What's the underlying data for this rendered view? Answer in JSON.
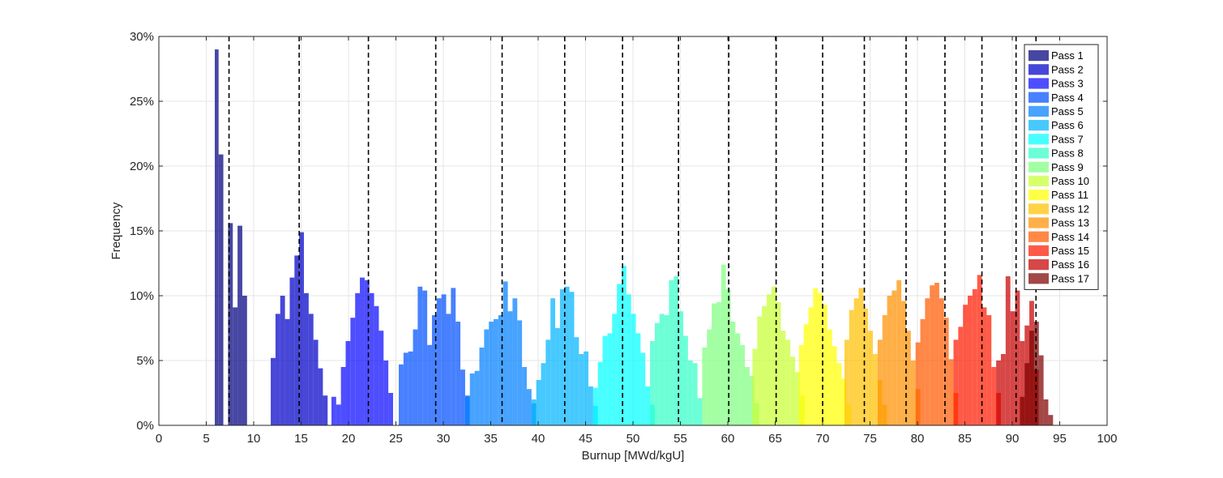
{
  "chart_data": {
    "type": "bar",
    "subtype": "histogram",
    "title": "",
    "xlabel": "Burnup [MWd/kgU]",
    "ylabel": "Frequency",
    "xlim": [
      0,
      100
    ],
    "ylim": [
      0,
      30
    ],
    "x_ticks": [
      "0",
      "5",
      "10",
      "15",
      "20",
      "25",
      "30",
      "35",
      "40",
      "45",
      "50",
      "55",
      "60",
      "65",
      "70",
      "75",
      "80",
      "85",
      "90",
      "95",
      "100"
    ],
    "y_ticks": [
      "0%",
      "5%",
      "10%",
      "15%",
      "20%",
      "25%",
      "30%"
    ],
    "grid": true,
    "legend_position": "top-right",
    "bar_opacity": 0.72,
    "dashed_lines_x": [
      7.4,
      14.8,
      22.1,
      29.2,
      36.2,
      42.8,
      48.9,
      54.8,
      60.1,
      65.1,
      70.0,
      74.4,
      78.8,
      82.9,
      86.8,
      90.4,
      92.5
    ],
    "series": [
      {
        "name": "Pass 1",
        "color": "#00007f",
        "bins": [
          [
            5.9,
            6.3,
            29.0
          ],
          [
            6.3,
            6.8,
            20.9
          ],
          [
            7.3,
            7.8,
            15.6
          ],
          [
            7.8,
            8.3,
            9.1
          ],
          [
            8.3,
            8.8,
            15.4
          ],
          [
            8.8,
            9.3,
            10.0
          ]
        ]
      },
      {
        "name": "Pass 2",
        "color": "#0000c8",
        "bins": [
          [
            11.8,
            12.3,
            5.2
          ],
          [
            12.3,
            12.8,
            8.6
          ],
          [
            12.8,
            13.3,
            10.0
          ],
          [
            13.3,
            13.8,
            8.2
          ],
          [
            13.8,
            14.3,
            11.4
          ],
          [
            14.3,
            14.8,
            13.1
          ],
          [
            14.8,
            15.3,
            14.9
          ],
          [
            15.3,
            15.8,
            10.2
          ],
          [
            15.8,
            16.3,
            8.6
          ],
          [
            16.3,
            16.8,
            6.6
          ],
          [
            16.8,
            17.3,
            4.4
          ],
          [
            17.3,
            17.8,
            2.3
          ]
        ]
      },
      {
        "name": "Pass 3",
        "color": "#0a0aff",
        "bins": [
          [
            18.2,
            18.7,
            2.2
          ],
          [
            18.7,
            19.2,
            1.6
          ],
          [
            19.2,
            19.7,
            4.5
          ],
          [
            19.7,
            20.2,
            6.5
          ],
          [
            20.2,
            20.7,
            8.3
          ],
          [
            20.7,
            21.2,
            10.2
          ],
          [
            21.2,
            21.7,
            11.4
          ],
          [
            21.7,
            22.2,
            11.2
          ],
          [
            22.2,
            22.7,
            10.2
          ],
          [
            22.7,
            23.2,
            9.2
          ],
          [
            23.2,
            23.7,
            7.3
          ],
          [
            23.7,
            24.2,
            5.0
          ],
          [
            24.2,
            24.7,
            2.5
          ]
        ]
      },
      {
        "name": "Pass 4",
        "color": "#0050ff",
        "bins": [
          [
            25.3,
            25.8,
            4.7
          ],
          [
            25.8,
            26.3,
            5.6
          ],
          [
            26.3,
            26.8,
            5.7
          ],
          [
            26.8,
            27.3,
            7.4
          ],
          [
            27.3,
            27.8,
            10.7
          ],
          [
            27.8,
            28.3,
            10.4
          ],
          [
            28.3,
            28.8,
            6.2
          ],
          [
            28.8,
            29.3,
            8.5
          ],
          [
            29.3,
            29.8,
            9.8
          ],
          [
            29.8,
            30.3,
            10.1
          ],
          [
            30.3,
            30.8,
            8.6
          ],
          [
            30.8,
            31.3,
            10.6
          ],
          [
            31.3,
            31.8,
            8.0
          ],
          [
            31.8,
            32.3,
            4.3
          ],
          [
            32.3,
            32.8,
            2.3
          ]
        ]
      },
      {
        "name": "Pass 5",
        "color": "#0080ff",
        "bins": [
          [
            32.3,
            32.8,
            2.2
          ],
          [
            32.8,
            33.3,
            4.0
          ],
          [
            33.3,
            33.8,
            4.2
          ],
          [
            33.8,
            34.3,
            6.0
          ],
          [
            34.3,
            34.8,
            7.4
          ],
          [
            34.8,
            35.3,
            8.0
          ],
          [
            35.3,
            35.8,
            8.2
          ],
          [
            35.8,
            36.3,
            8.5
          ],
          [
            36.3,
            36.8,
            11.1
          ],
          [
            36.8,
            37.3,
            8.8
          ],
          [
            37.3,
            37.8,
            9.8
          ],
          [
            37.8,
            38.3,
            8.1
          ],
          [
            38.3,
            38.8,
            4.5
          ],
          [
            38.8,
            39.3,
            2.8
          ],
          [
            39.3,
            39.8,
            1.7
          ]
        ]
      },
      {
        "name": "Pass 6",
        "color": "#00b4ff",
        "bins": [
          [
            39.3,
            39.8,
            2.0
          ],
          [
            39.8,
            40.3,
            3.5
          ],
          [
            40.3,
            40.8,
            4.8
          ],
          [
            40.8,
            41.3,
            6.6
          ],
          [
            41.3,
            41.8,
            9.8
          ],
          [
            41.8,
            42.3,
            7.5
          ],
          [
            42.3,
            42.8,
            10.5
          ],
          [
            42.8,
            43.3,
            10.7
          ],
          [
            43.3,
            43.8,
            10.3
          ],
          [
            43.8,
            44.3,
            6.8
          ],
          [
            44.3,
            44.8,
            5.5
          ],
          [
            44.8,
            45.3,
            5.7
          ],
          [
            45.3,
            45.8,
            3.0
          ],
          [
            45.8,
            46.3,
            1.5
          ]
        ]
      },
      {
        "name": "Pass 7",
        "color": "#00ffff",
        "bins": [
          [
            45.8,
            46.3,
            2.9
          ],
          [
            46.3,
            46.8,
            4.9
          ],
          [
            46.8,
            47.3,
            6.9
          ],
          [
            47.3,
            47.8,
            7.1
          ],
          [
            47.8,
            48.3,
            8.6
          ],
          [
            48.3,
            48.8,
            10.9
          ],
          [
            48.8,
            49.3,
            12.3
          ],
          [
            49.3,
            49.8,
            10.1
          ],
          [
            49.8,
            50.3,
            8.6
          ],
          [
            50.3,
            50.8,
            7.1
          ],
          [
            50.8,
            51.3,
            5.6
          ],
          [
            51.3,
            51.8,
            3.0
          ],
          [
            51.8,
            52.3,
            1.6
          ]
        ]
      },
      {
        "name": "Pass 8",
        "color": "#33ffc8",
        "bins": [
          [
            51.8,
            52.3,
            6.5
          ],
          [
            52.3,
            52.8,
            7.9
          ],
          [
            52.8,
            53.3,
            8.6
          ],
          [
            53.3,
            53.8,
            8.5
          ],
          [
            53.8,
            54.3,
            11.2
          ],
          [
            54.3,
            54.8,
            11.5
          ],
          [
            54.8,
            55.3,
            8.8
          ],
          [
            55.3,
            55.8,
            6.9
          ],
          [
            55.8,
            56.3,
            5.0
          ],
          [
            56.3,
            56.8,
            4.8
          ],
          [
            56.8,
            57.3,
            2.1
          ]
        ]
      },
      {
        "name": "Pass 9",
        "color": "#80ff80",
        "bins": [
          [
            57.3,
            57.8,
            6.0
          ],
          [
            57.8,
            58.3,
            7.4
          ],
          [
            58.3,
            58.8,
            9.4
          ],
          [
            58.8,
            59.3,
            9.5
          ],
          [
            59.3,
            59.8,
            12.4
          ],
          [
            59.8,
            60.3,
            10.5
          ],
          [
            60.3,
            60.8,
            8.0
          ],
          [
            60.8,
            61.3,
            7.1
          ],
          [
            61.3,
            61.8,
            6.2
          ],
          [
            61.8,
            62.3,
            4.5
          ],
          [
            62.3,
            62.8,
            3.8
          ],
          [
            62.8,
            63.3,
            1.7
          ]
        ]
      },
      {
        "name": "Pass 10",
        "color": "#c8ff33",
        "bins": [
          [
            62.6,
            63.1,
            5.9
          ],
          [
            63.1,
            63.6,
            8.4
          ],
          [
            63.6,
            64.1,
            9.2
          ],
          [
            64.1,
            64.6,
            10.1
          ],
          [
            64.6,
            65.1,
            10.7
          ],
          [
            65.1,
            65.6,
            9.5
          ],
          [
            65.6,
            66.1,
            7.3
          ],
          [
            66.1,
            66.6,
            6.6
          ],
          [
            66.6,
            67.1,
            5.3
          ],
          [
            67.1,
            67.6,
            4.1
          ],
          [
            67.6,
            68.1,
            2.3
          ]
        ]
      },
      {
        "name": "Pass 11",
        "color": "#ffff00",
        "bins": [
          [
            67.5,
            68.0,
            6.2
          ],
          [
            68.0,
            68.5,
            7.8
          ],
          [
            68.5,
            69.0,
            9.1
          ],
          [
            69.0,
            69.5,
            10.6
          ],
          [
            69.5,
            70.0,
            10.2
          ],
          [
            70.0,
            70.5,
            9.3
          ],
          [
            70.5,
            71.0,
            7.4
          ],
          [
            71.0,
            71.5,
            6.1
          ],
          [
            71.5,
            72.0,
            4.8
          ],
          [
            72.0,
            72.5,
            3.6
          ],
          [
            72.5,
            73.0,
            1.6
          ]
        ]
      },
      {
        "name": "Pass 12",
        "color": "#ffc000",
        "bins": [
          [
            72.3,
            72.8,
            6.6
          ],
          [
            72.8,
            73.3,
            8.9
          ],
          [
            73.3,
            73.8,
            9.8
          ],
          [
            73.8,
            74.3,
            10.6
          ],
          [
            74.3,
            74.8,
            9.0
          ],
          [
            74.8,
            75.3,
            7.3
          ],
          [
            75.3,
            75.8,
            5.5
          ],
          [
            75.8,
            76.3,
            3.5
          ],
          [
            76.3,
            76.8,
            1.6
          ]
        ]
      },
      {
        "name": "Pass 13",
        "color": "#ff9000",
        "bins": [
          [
            75.8,
            76.3,
            6.6
          ],
          [
            76.3,
            76.8,
            8.5
          ],
          [
            76.8,
            77.3,
            10.0
          ],
          [
            77.3,
            77.8,
            10.4
          ],
          [
            77.8,
            78.3,
            11.2
          ],
          [
            78.3,
            78.8,
            9.6
          ],
          [
            78.8,
            79.3,
            7.3
          ],
          [
            79.3,
            79.8,
            5.0
          ],
          [
            79.8,
            80.3,
            2.8
          ]
        ]
      },
      {
        "name": "Pass 14",
        "color": "#ff5a00",
        "bins": [
          [
            79.8,
            80.3,
            6.4
          ],
          [
            80.3,
            80.8,
            8.2
          ],
          [
            80.8,
            81.3,
            9.8
          ],
          [
            81.3,
            81.8,
            10.8
          ],
          [
            81.8,
            82.3,
            11.0
          ],
          [
            82.3,
            82.8,
            9.8
          ],
          [
            82.8,
            83.3,
            8.3
          ],
          [
            83.3,
            83.8,
            5.1
          ],
          [
            83.8,
            84.3,
            2.5
          ]
        ]
      },
      {
        "name": "Pass 15",
        "color": "#ff1a00",
        "bins": [
          [
            83.8,
            84.3,
            6.6
          ],
          [
            84.3,
            84.8,
            7.6
          ],
          [
            84.8,
            85.3,
            9.3
          ],
          [
            85.3,
            85.8,
            10.0
          ],
          [
            85.8,
            86.3,
            10.5
          ],
          [
            86.3,
            86.8,
            11.6
          ],
          [
            86.8,
            87.3,
            9.1
          ],
          [
            87.3,
            87.8,
            8.5
          ],
          [
            87.8,
            88.3,
            4.5
          ],
          [
            88.3,
            88.8,
            2.5
          ]
        ]
      },
      {
        "name": "Pass 16",
        "color": "#c80000",
        "bins": [
          [
            88.3,
            88.8,
            5.0
          ],
          [
            88.8,
            89.3,
            5.5
          ],
          [
            89.3,
            89.8,
            11.5
          ],
          [
            89.8,
            90.3,
            8.8
          ],
          [
            90.3,
            90.8,
            10.4
          ],
          [
            90.8,
            91.3,
            6.5
          ],
          [
            91.3,
            91.8,
            7.7
          ],
          [
            91.8,
            92.3,
            9.6
          ],
          [
            92.3,
            92.8,
            4.3
          ]
        ]
      },
      {
        "name": "Pass 17",
        "color": "#800000",
        "bins": [
          [
            90.8,
            91.3,
            2.2
          ],
          [
            91.3,
            91.8,
            4.8
          ],
          [
            91.8,
            92.3,
            7.3
          ],
          [
            92.3,
            92.8,
            8.0
          ],
          [
            92.8,
            93.3,
            5.4
          ],
          [
            93.3,
            93.8,
            2.0
          ],
          [
            93.8,
            94.3,
            0.8
          ]
        ]
      }
    ]
  }
}
